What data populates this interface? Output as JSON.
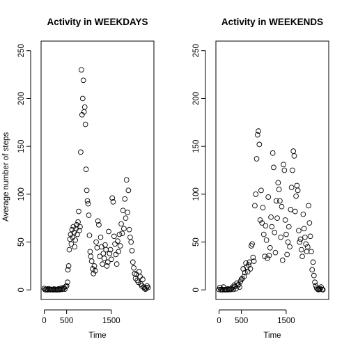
{
  "chart_data": [
    {
      "type": "scatter",
      "title": "Activity in WEEKDAYS",
      "xlabel": "Time",
      "ylabel": "Average number of steps",
      "xlim": [
        -70,
        2450
      ],
      "ylim": [
        -10,
        260
      ],
      "x_ticks": [
        0,
        500,
        1500
      ],
      "y_ticks": [
        0,
        50,
        100,
        150,
        200,
        250
      ],
      "marker": "open-circle",
      "x": [
        0,
        20,
        40,
        60,
        80,
        100,
        120,
        140,
        160,
        180,
        200,
        220,
        240,
        260,
        280,
        300,
        320,
        340,
        360,
        380,
        400,
        420,
        440,
        460,
        480,
        500,
        520,
        530,
        545,
        560,
        575,
        590,
        605,
        620,
        635,
        650,
        665,
        680,
        695,
        710,
        725,
        740,
        755,
        770,
        785,
        800,
        815,
        830,
        845,
        860,
        875,
        890,
        905,
        920,
        935,
        950,
        965,
        980,
        995,
        1010,
        1025,
        1040,
        1060,
        1080,
        1100,
        1120,
        1140,
        1160,
        1180,
        1200,
        1220,
        1240,
        1260,
        1280,
        1300,
        1320,
        1340,
        1360,
        1380,
        1400,
        1420,
        1440,
        1460,
        1480,
        1500,
        1520,
        1540,
        1560,
        1580,
        1600,
        1620,
        1640,
        1660,
        1680,
        1700,
        1720,
        1740,
        1760,
        1780,
        1800,
        1820,
        1840,
        1860,
        1880,
        1900,
        1920,
        1940,
        1960,
        1980,
        2000,
        2020,
        2040,
        2060,
        2080,
        2100,
        2120,
        2140,
        2160,
        2180,
        2200,
        2220,
        2240,
        2260,
        2280,
        2300,
        2320
      ],
      "y": [
        1.5,
        0.3,
        0.2,
        0.8,
        0.1,
        1.2,
        0.4,
        0.2,
        0.6,
        0.3,
        0.1,
        0.9,
        0.2,
        0.5,
        0.1,
        0.3,
        1.0,
        0.2,
        0.7,
        1.8,
        0.5,
        1.1,
        2.5,
        0.8,
        3.4,
        4.2,
        8.0,
        21.0,
        25.0,
        42.0,
        53.0,
        58.0,
        48.0,
        63.0,
        55.0,
        66.0,
        60.0,
        45.0,
        52.0,
        64.0,
        68.0,
        58.0,
        71.0,
        82.0,
        62.0,
        66.0,
        144.0,
        230.0,
        183.0,
        200.0,
        219.0,
        186.0,
        191.0,
        173.0,
        126.0,
        104.0,
        93.0,
        90.0,
        78.0,
        57.0,
        40.0,
        35.0,
        30.0,
        22.0,
        17.0,
        25.0,
        20.0,
        50.0,
        44.0,
        72.0,
        68.0,
        35.0,
        55.0,
        45.0,
        27.0,
        38.0,
        33.0,
        47.0,
        42.0,
        25.0,
        29.0,
        61.0,
        38.0,
        42.0,
        32.0,
        96.0,
        92.0,
        56.0,
        48.0,
        37.0,
        27.0,
        51.0,
        40.0,
        58.0,
        46.0,
        69.0,
        59.0,
        83.0,
        64.0,
        95.0,
        75.0,
        115.0,
        81.0,
        104.0,
        63.0,
        55.0,
        50.0,
        41.0,
        29.0,
        23.0,
        17.0,
        12.0,
        16.0,
        10.0,
        8.0,
        19.0,
        14.0,
        6.0,
        4.0,
        11.0,
        3.0,
        1.5,
        0.8,
        2.0,
        4.0,
        2.5
      ]
    },
    {
      "type": "scatter",
      "title": "Activity in WEEKENDS",
      "xlabel": "Time",
      "ylabel": "",
      "xlim": [
        -70,
        2450
      ],
      "ylim": [
        -10,
        260
      ],
      "x_ticks": [
        0,
        500,
        1500
      ],
      "y_ticks": [
        0,
        50,
        100,
        150,
        200,
        250
      ],
      "marker": "open-circle",
      "x": [
        0,
        20,
        40,
        60,
        80,
        100,
        120,
        140,
        160,
        180,
        200,
        220,
        240,
        260,
        280,
        300,
        320,
        340,
        360,
        380,
        400,
        420,
        440,
        460,
        480,
        500,
        520,
        540,
        560,
        580,
        600,
        620,
        640,
        660,
        680,
        700,
        720,
        740,
        760,
        780,
        800,
        820,
        840,
        860,
        880,
        900,
        920,
        940,
        960,
        980,
        1000,
        1020,
        1040,
        1060,
        1080,
        1100,
        1120,
        1140,
        1160,
        1180,
        1200,
        1220,
        1240,
        1260,
        1280,
        1300,
        1320,
        1340,
        1360,
        1380,
        1400,
        1420,
        1440,
        1460,
        1480,
        1500,
        1520,
        1540,
        1560,
        1580,
        1600,
        1620,
        1640,
        1660,
        1680,
        1700,
        1720,
        1740,
        1760,
        1780,
        1800,
        1820,
        1840,
        1860,
        1880,
        1900,
        1920,
        1940,
        1960,
        1980,
        2000,
        2020,
        2040,
        2060,
        2080,
        2100,
        2120,
        2140,
        2160,
        2180,
        2200,
        2220,
        2240,
        2260,
        2280,
        2300,
        2320
      ],
      "y": [
        0.4,
        2.5,
        0.2,
        0.6,
        0.1,
        3.0,
        0.3,
        0.2,
        0.5,
        0.2,
        1.2,
        0.3,
        0.6,
        0.4,
        1.0,
        2.8,
        0.5,
        5.0,
        3.6,
        1.2,
        7.0,
        4.5,
        5.8,
        3.0,
        9.0,
        11.0,
        12.0,
        22.0,
        14.0,
        18.0,
        28.0,
        24.0,
        19.0,
        26.0,
        29.0,
        22.0,
        46.0,
        48.0,
        34.0,
        30.0,
        88.0,
        100.0,
        137.0,
        162.0,
        166.0,
        152.0,
        73.0,
        104.0,
        70.0,
        86.0,
        58.0,
        35.0,
        67.0,
        52.0,
        33.0,
        97.0,
        36.0,
        44.0,
        76.0,
        66.0,
        143.0,
        128.0,
        60.0,
        39.0,
        93.0,
        75.0,
        112.0,
        105.0,
        93.0,
        55.0,
        87.0,
        31.0,
        131.0,
        125.0,
        73.0,
        58.0,
        37.0,
        50.0,
        66.0,
        45.0,
        84.0,
        107.0,
        125.0,
        145.0,
        140.0,
        82.0,
        98.0,
        109.0,
        104.0,
        62.0,
        50.0,
        53.0,
        42.0,
        35.0,
        79.0,
        64.0,
        55.0,
        48.0,
        40.0,
        45.0,
        88.0,
        70.0,
        56.0,
        40.0,
        21.0,
        29.0,
        15.0,
        8.0,
        4.5,
        2.0,
        0.8,
        0.3,
        0.6,
        1.2,
        3.0,
        0.5,
        0.2
      ]
    }
  ]
}
